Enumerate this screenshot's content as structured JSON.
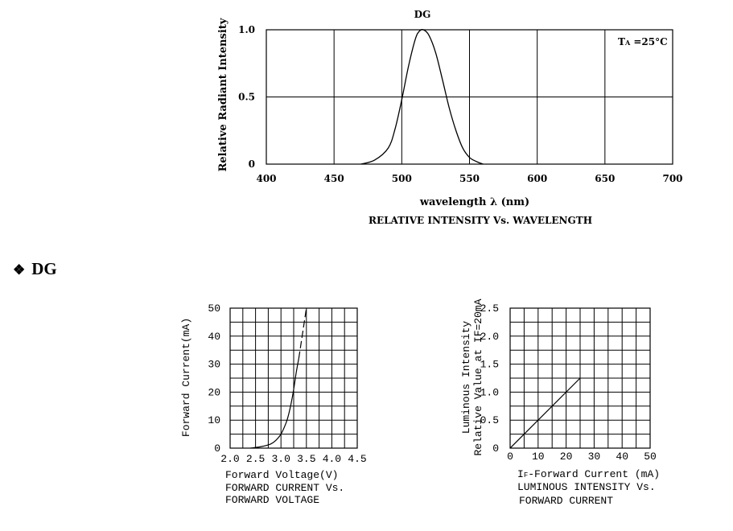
{
  "section": {
    "bullet": "❖",
    "heading": "DG"
  },
  "chart_data": [
    {
      "type": "line",
      "title": "DG",
      "annotation": "T A =25°C",
      "xlabel": "wavelength λ (nm)",
      "ylabel": "Relative Radiant Intensity",
      "caption": "RELATIVE INTENSITY Vs. WAVELENGTH",
      "xlim": [
        400,
        700
      ],
      "ylim": [
        0,
        1.0
      ],
      "x_ticks": [
        "400",
        "450",
        "500",
        "550",
        "600",
        "650",
        "700"
      ],
      "y_ticks": [
        "0",
        "0.5",
        "1.0"
      ],
      "grid": true,
      "x": [
        470,
        480,
        490,
        495,
        500,
        505,
        510,
        513,
        516,
        520,
        525,
        530,
        535,
        540,
        545,
        550,
        555,
        560
      ],
      "y": [
        0.0,
        0.03,
        0.12,
        0.26,
        0.48,
        0.73,
        0.93,
        0.99,
        1.0,
        0.96,
        0.83,
        0.63,
        0.42,
        0.25,
        0.12,
        0.05,
        0.02,
        0.0
      ]
    },
    {
      "type": "line",
      "xlabel": "Forward Voltage(V)",
      "ylabel": "Forward Current(mA)",
      "caption_lines": [
        "FORWARD CURRENT Vs.",
        "FORWARD VOLTAGE"
      ],
      "xlim": [
        2.0,
        4.5
      ],
      "ylim": [
        0,
        50
      ],
      "x_ticks": [
        "2.0",
        "2.5",
        "3.0",
        "3.5",
        "4.0",
        "4.5"
      ],
      "y_ticks": [
        "0",
        "10",
        "20",
        "30",
        "40",
        "50"
      ],
      "grid": true,
      "x": [
        2.4,
        2.6,
        2.8,
        2.9,
        3.0,
        3.1,
        3.15,
        3.2,
        3.25,
        3.3,
        3.35
      ],
      "y": [
        0,
        0.5,
        1.5,
        2.8,
        5,
        9,
        12,
        16,
        21,
        27,
        32
      ],
      "x_dashed": [
        3.35,
        3.4,
        3.45,
        3.5
      ],
      "y_dashed": [
        32,
        38,
        44,
        50
      ]
    },
    {
      "type": "line",
      "xlabel_prefix": "I",
      "xlabel_sub": "F",
      "xlabel": "-Forward Current (mA)",
      "ylabel_lines": [
        "Luminous Intensity",
        "Relative Value at IF=20mA"
      ],
      "caption_lines": [
        "LUMINOUS INTENSITY Vs.",
        "FORWARD CURRENT"
      ],
      "xlim": [
        0,
        50
      ],
      "ylim": [
        0,
        2.5
      ],
      "x_ticks": [
        "0",
        "10",
        "20",
        "30",
        "40",
        "50"
      ],
      "y_ticks": [
        "0",
        "0.5",
        "1.0",
        "1.5",
        "2.0",
        "2.5"
      ],
      "grid": true,
      "x": [
        0,
        25
      ],
      "y": [
        0,
        1.25
      ]
    }
  ]
}
